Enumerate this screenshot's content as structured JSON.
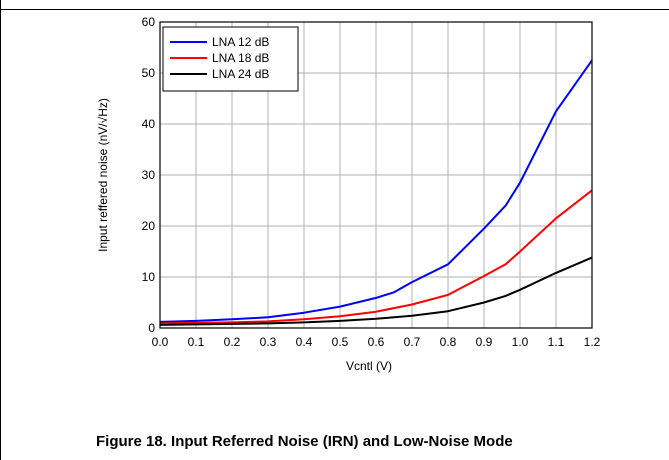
{
  "caption": "Figure 18. Input Referred Noise (IRN) and Low-Noise Mode",
  "chart_data": {
    "type": "line",
    "title": "",
    "xlabel": "Vcntl (V)",
    "ylabel": "Input reffered noise (nV/√Hz)",
    "xlim": [
      0.0,
      1.2
    ],
    "ylim": [
      0,
      60
    ],
    "xticks": [
      "0.0",
      "0.1",
      "0.2",
      "0.3",
      "0.4",
      "0.5",
      "0.6",
      "0.7",
      "0.8",
      "0.9",
      "1.0",
      "1.1",
      "1.2"
    ],
    "yticks": [
      "0",
      "10",
      "20",
      "30",
      "40",
      "50",
      "60"
    ],
    "grid": true,
    "legend_position": "top-left",
    "series": [
      {
        "name": "LNA 12 dB",
        "color": "#0000ff",
        "x": [
          0.0,
          0.1,
          0.2,
          0.3,
          0.4,
          0.5,
          0.6,
          0.65,
          0.7,
          0.8,
          0.9,
          0.96,
          1.0,
          1.1,
          1.2
        ],
        "y": [
          1.2,
          1.4,
          1.7,
          2.1,
          3.0,
          4.2,
          5.9,
          7.0,
          9.0,
          12.5,
          19.5,
          24.0,
          28.5,
          42.5,
          52.5
        ]
      },
      {
        "name": "LNA 18 dB",
        "color": "#ff0000",
        "x": [
          0.0,
          0.1,
          0.2,
          0.3,
          0.4,
          0.5,
          0.6,
          0.7,
          0.8,
          0.9,
          0.96,
          1.0,
          1.1,
          1.2
        ],
        "y": [
          0.9,
          1.0,
          1.1,
          1.3,
          1.7,
          2.3,
          3.2,
          4.6,
          6.5,
          10.2,
          12.5,
          15.0,
          21.5,
          27.0
        ]
      },
      {
        "name": "LNA 24 dB",
        "color": "#000000",
        "x": [
          0.0,
          0.1,
          0.2,
          0.3,
          0.4,
          0.5,
          0.6,
          0.7,
          0.8,
          0.9,
          0.96,
          1.0,
          1.1,
          1.2
        ],
        "y": [
          0.6,
          0.7,
          0.8,
          0.9,
          1.1,
          1.4,
          1.8,
          2.4,
          3.3,
          5.0,
          6.3,
          7.5,
          10.8,
          13.8
        ]
      }
    ]
  }
}
